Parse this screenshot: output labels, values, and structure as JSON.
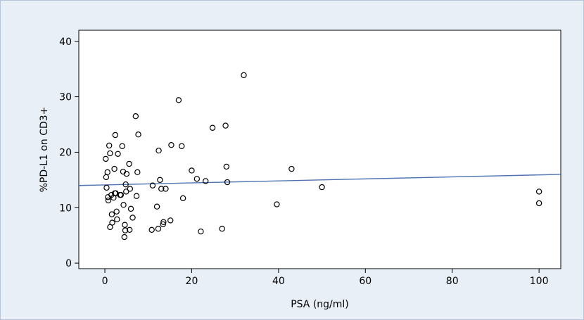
{
  "chart_data": {
    "type": "scatter",
    "xlabel": "PSA (ng/ml)",
    "ylabel": "%PD-L1 on CD3+",
    "xlim": [
      -6,
      105
    ],
    "ylim": [
      -1,
      42
    ],
    "xticks": [
      0,
      20,
      40,
      60,
      80,
      100
    ],
    "yticks": [
      0,
      10,
      20,
      30,
      40
    ],
    "grid": false,
    "colors": {
      "background": "#e9eff7",
      "plot": "#ffffff",
      "fit_line": "#4c72b0",
      "points": "#000000"
    },
    "series": [
      {
        "type": "scatter",
        "points": [
          [
            0.2,
            18.8
          ],
          [
            0.3,
            15.5
          ],
          [
            0.4,
            13.6
          ],
          [
            0.6,
            16.4
          ],
          [
            0.7,
            11.9
          ],
          [
            0.8,
            11.3
          ],
          [
            1.0,
            21.2
          ],
          [
            1.2,
            19.8
          ],
          [
            1.2,
            6.5
          ],
          [
            1.5,
            12.3
          ],
          [
            1.6,
            8.8
          ],
          [
            1.7,
            7.3
          ],
          [
            2.0,
            11.8
          ],
          [
            2.2,
            17.0
          ],
          [
            2.3,
            12.6
          ],
          [
            2.4,
            23.1
          ],
          [
            2.5,
            12.6
          ],
          [
            2.7,
            9.3
          ],
          [
            2.8,
            7.9
          ],
          [
            3.0,
            19.7
          ],
          [
            3.5,
            12.3
          ],
          [
            3.7,
            12.3
          ],
          [
            4.0,
            21.1
          ],
          [
            4.2,
            16.5
          ],
          [
            4.3,
            10.5
          ],
          [
            4.5,
            4.7
          ],
          [
            4.6,
            6.9
          ],
          [
            4.7,
            5.9
          ],
          [
            4.8,
            14.2
          ],
          [
            4.9,
            12.9
          ],
          [
            5.0,
            16.1
          ],
          [
            5.6,
            17.9
          ],
          [
            5.7,
            6.0
          ],
          [
            5.8,
            13.4
          ],
          [
            6.0,
            9.8
          ],
          [
            6.4,
            8.2
          ],
          [
            7.1,
            26.5
          ],
          [
            7.3,
            12.1
          ],
          [
            7.5,
            16.4
          ],
          [
            7.7,
            23.2
          ],
          [
            10.8,
            6.0
          ],
          [
            11.0,
            14.0
          ],
          [
            12.0,
            10.2
          ],
          [
            12.3,
            6.2
          ],
          [
            12.4,
            20.3
          ],
          [
            12.7,
            15.0
          ],
          [
            13.0,
            13.4
          ],
          [
            13.4,
            7.0
          ],
          [
            13.5,
            7.4
          ],
          [
            14.0,
            13.4
          ],
          [
            15.1,
            7.7
          ],
          [
            15.3,
            21.3
          ],
          [
            17.0,
            29.4
          ],
          [
            17.7,
            21.1
          ],
          [
            18.0,
            11.7
          ],
          [
            20.0,
            16.7
          ],
          [
            21.2,
            15.2
          ],
          [
            22.1,
            5.7
          ],
          [
            23.2,
            14.8
          ],
          [
            24.8,
            24.4
          ],
          [
            27.0,
            6.2
          ],
          [
            27.8,
            24.8
          ],
          [
            28.0,
            17.4
          ],
          [
            28.2,
            14.6
          ],
          [
            32.0,
            33.9
          ],
          [
            39.6,
            10.6
          ],
          [
            43.0,
            17.0
          ],
          [
            50.0,
            13.7
          ],
          [
            100.0,
            12.9
          ],
          [
            100.0,
            10.8
          ]
        ]
      },
      {
        "type": "line",
        "points": [
          [
            -6,
            14.0
          ],
          [
            105,
            16.0
          ]
        ]
      }
    ]
  }
}
